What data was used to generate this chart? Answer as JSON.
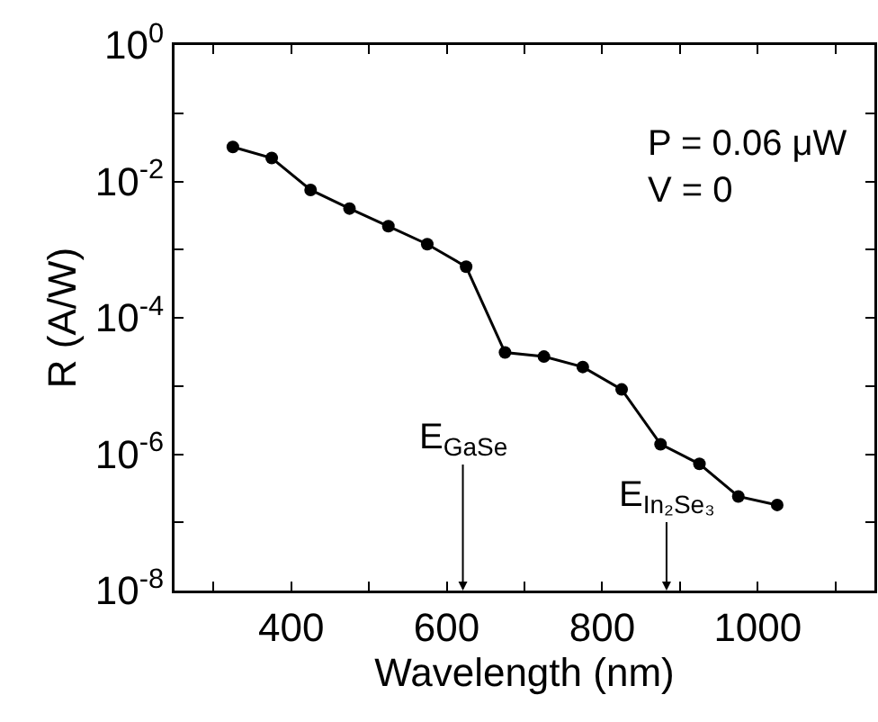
{
  "chart_data": {
    "type": "line",
    "xlabel": "Wavelength (nm)",
    "ylabel": "R (A/W)",
    "x": [
      325,
      375,
      425,
      475,
      525,
      575,
      625,
      675,
      725,
      775,
      825,
      875,
      925,
      975,
      1025
    ],
    "series": [
      {
        "color": "#000000",
        "values": [
          0.032,
          0.022,
          0.0075,
          0.004,
          0.0022,
          0.0012,
          0.00056,
          3.1e-05,
          2.7e-05,
          1.9e-05,
          8.9e-06,
          1.4e-06,
          7.2e-07,
          2.4e-07,
          1.8e-07
        ]
      }
    ],
    "log": "y",
    "xlim": [
      250,
      1150
    ],
    "xticks": [
      {
        "value": 300,
        "label": null
      },
      400,
      {
        "value": 500,
        "label": null
      },
      600,
      {
        "value": 700,
        "label": null
      },
      800,
      {
        "value": 900,
        "label": null
      },
      1000,
      {
        "value": 1100,
        "label": null
      }
    ],
    "ylim": [
      1e-08,
      1
    ],
    "yticks": [
      {
        "value": 1e-08,
        "label": "10$^{-8}$"
      },
      {
        "value": 1e-07,
        "label": null
      },
      {
        "value": 1e-06,
        "label": "10$^{-6}$"
      },
      {
        "value": 1e-05,
        "label": null
      },
      {
        "value": 0.0001,
        "label": "10$^{-4}$"
      },
      {
        "value": 0.001,
        "label": null
      },
      {
        "value": 0.01,
        "label": "10$^{-2}$"
      },
      {
        "value": 0.1,
        "label": null
      },
      {
        "value": 1,
        "label": "10$^{0}$"
      }
    ],
    "annotations": [
      "P = 0.06 μW\nV = 0",
      "E$_{GaSe}$",
      "E$_{In₂Se₃}$"
    ],
    "marker": "circle",
    "line_style": "solid",
    "grid": false
  }
}
